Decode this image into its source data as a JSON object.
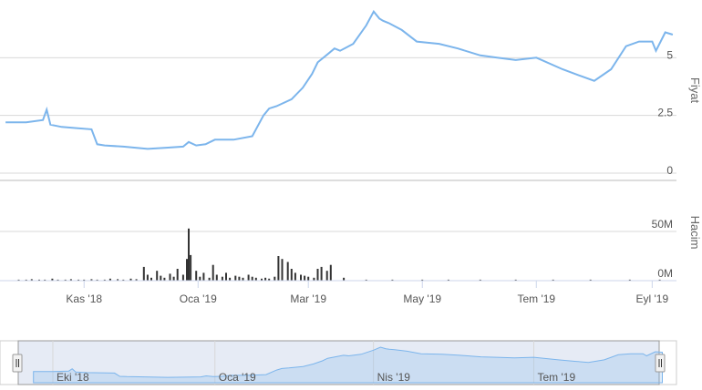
{
  "chart_data": [
    {
      "type": "line",
      "name": "price",
      "ylabel": "Fiyat",
      "ylim": [
        0,
        7.5
      ],
      "yticks": [
        {
          "value": 0,
          "label": "0"
        },
        {
          "value": 2.5,
          "label": "2.5"
        },
        {
          "value": 5,
          "label": "5"
        }
      ],
      "grid": true,
      "color": "#7cb5ec",
      "series": [
        {
          "x": [
            "2018-09-20",
            "2018-10-01",
            "2018-10-10",
            "2018-10-12",
            "2018-10-14",
            "2018-10-20",
            "2018-10-28",
            "2018-11-05",
            "2018-11-08",
            "2018-11-12",
            "2018-11-22",
            "2018-12-05",
            "2018-12-15",
            "2018-12-24",
            "2018-12-27",
            "2018-12-31",
            "2019-01-05",
            "2019-01-10",
            "2019-01-20",
            "2019-01-30",
            "2019-02-05",
            "2019-02-08",
            "2019-02-12",
            "2019-02-20",
            "2019-02-26",
            "2019-03-03",
            "2019-03-06",
            "2019-03-12",
            "2019-03-15",
            "2019-03-18",
            "2019-03-25",
            "2019-04-01",
            "2019-04-05",
            "2019-04-08",
            "2019-04-10",
            "2019-04-13",
            "2019-04-20",
            "2019-04-28",
            "2019-05-10",
            "2019-05-20",
            "2019-06-01",
            "2019-06-10",
            "2019-06-20",
            "2019-07-01",
            "2019-07-15",
            "2019-07-25",
            "2019-08-01",
            "2019-08-10",
            "2019-08-18",
            "2019-08-25",
            "2019-09-01",
            "2019-09-03",
            "2019-09-08",
            "2019-09-12"
          ],
          "values": [
            2.2,
            2.2,
            2.3,
            2.75,
            2.1,
            2.0,
            1.95,
            1.9,
            1.25,
            1.2,
            1.15,
            1.05,
            1.1,
            1.15,
            1.35,
            1.2,
            1.25,
            1.45,
            1.45,
            1.6,
            2.5,
            2.8,
            2.9,
            3.2,
            3.7,
            4.3,
            4.8,
            5.2,
            5.4,
            5.3,
            5.6,
            6.4,
            7.0,
            6.7,
            6.6,
            6.5,
            6.2,
            5.7,
            5.6,
            5.4,
            5.1,
            5.0,
            4.9,
            5.0,
            4.5,
            4.2,
            4.0,
            4.5,
            5.5,
            5.7,
            5.7,
            5.3,
            6.1,
            6.0
          ]
        }
      ]
    },
    {
      "type": "bar",
      "name": "volume",
      "ylabel": "Hacim",
      "ylim": [
        0,
        100
      ],
      "yticks": [
        {
          "value": 0,
          "label": "0M"
        },
        {
          "value": 50,
          "label": "50M"
        }
      ],
      "grid": true,
      "color": "#333333",
      "unit": "M",
      "series": [
        {
          "x": [
            "2018-09-27",
            "2018-10-01",
            "2018-10-04",
            "2018-10-08",
            "2018-10-11",
            "2018-10-15",
            "2018-10-18",
            "2018-10-22",
            "2018-10-25",
            "2018-10-29",
            "2018-11-01",
            "2018-11-05",
            "2018-11-08",
            "2018-11-12",
            "2018-11-15",
            "2018-11-19",
            "2018-11-22",
            "2018-11-26",
            "2018-11-29",
            "2018-12-03",
            "2018-12-05",
            "2018-12-07",
            "2018-12-10",
            "2018-12-12",
            "2018-12-14",
            "2018-12-17",
            "2018-12-19",
            "2018-12-21",
            "2018-12-24",
            "2018-12-26",
            "2018-12-27",
            "2018-12-28",
            "2018-12-31",
            "2019-01-02",
            "2019-01-04",
            "2019-01-07",
            "2019-01-09",
            "2019-01-11",
            "2019-01-14",
            "2019-01-16",
            "2019-01-18",
            "2019-01-21",
            "2019-01-23",
            "2019-01-25",
            "2019-01-28",
            "2019-01-30",
            "2019-02-01",
            "2019-02-04",
            "2019-02-06",
            "2019-02-08",
            "2019-02-11",
            "2019-02-13",
            "2019-02-15",
            "2019-02-18",
            "2019-02-20",
            "2019-02-22",
            "2019-02-25",
            "2019-02-27",
            "2019-03-01",
            "2019-03-04",
            "2019-03-06",
            "2019-03-08",
            "2019-03-11",
            "2019-03-13",
            "2019-03-20",
            "2019-04-01",
            "2019-04-15",
            "2019-05-01",
            "2019-05-15",
            "2019-06-01",
            "2019-06-20",
            "2019-07-10",
            "2019-07-30",
            "2019-08-20",
            "2019-09-05"
          ],
          "values": [
            1,
            1,
            1.5,
            1,
            1,
            2,
            1,
            1,
            1.5,
            1,
            1,
            1.5,
            1,
            1,
            2,
            1.5,
            1,
            2,
            1.5,
            14,
            6,
            3,
            10,
            5,
            3,
            7,
            4,
            12,
            6,
            22,
            53,
            26,
            10,
            4,
            8,
            3,
            16,
            6,
            4,
            8,
            3,
            5,
            4,
            3,
            6,
            4,
            3,
            2,
            3,
            2,
            4,
            25,
            22,
            19,
            12,
            8,
            6,
            5,
            4,
            3,
            12,
            14,
            10,
            16,
            3,
            1,
            1,
            1,
            1,
            1,
            1,
            1,
            1,
            1,
            1
          ]
        }
      ]
    },
    {
      "type": "area",
      "name": "navigator",
      "color": "#7cb5ec",
      "xticks": [
        {
          "date": "2018-10-01",
          "label": "Eki '18"
        },
        {
          "date": "2019-01-01",
          "label": "Oca '19"
        },
        {
          "date": "2019-04-01",
          "label": "Nis '19"
        },
        {
          "date": "2019-07-01",
          "label": "Tem '19"
        }
      ]
    }
  ],
  "x_axis": {
    "ticks": [
      {
        "date": "2018-11-01",
        "label": "Kas '18"
      },
      {
        "date": "2019-01-01",
        "label": "Oca '19"
      },
      {
        "date": "2019-03-01",
        "label": "Mar '19"
      },
      {
        "date": "2019-05-01",
        "label": "May '19"
      },
      {
        "date": "2019-07-01",
        "label": "Tem '19"
      },
      {
        "date": "2019-09-01",
        "label": "Eyl '19"
      }
    ]
  },
  "navigator": {
    "handle_left_icon": "grip-icon",
    "handle_right_icon": "grip-icon",
    "mask_color": "#e6ebf5"
  }
}
